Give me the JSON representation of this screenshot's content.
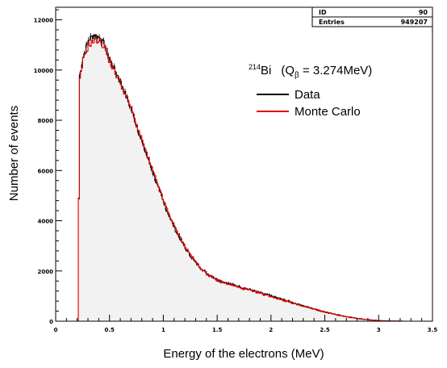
{
  "chart_data": {
    "type": "line",
    "xlabel": "Energy of the electrons (MeV)",
    "ylabel": "Number of events",
    "xlim": [
      0,
      3.5
    ],
    "ylim": [
      0,
      12500
    ],
    "x_ticks": [
      "0",
      "0.5",
      "1",
      "1.5",
      "2",
      "2.5",
      "3",
      "3.5"
    ],
    "y_ticks": [
      "0",
      "2000",
      "4000",
      "6000",
      "8000",
      "10000",
      "12000"
    ],
    "grid": false,
    "stats_box": {
      "id_label": "ID",
      "id_value": "90",
      "entries_label": "Entries",
      "entries_value": "949207"
    },
    "legend": {
      "title_sup": "214",
      "title_main": "Bi",
      "title_q": "(Q",
      "title_sub": "β",
      "title_rest": " = 3.274MeV)",
      "placement": "top-right",
      "entries": [
        {
          "label": "Data",
          "color": "#000000"
        },
        {
          "label": "Monte Carlo",
          "color": "#e00000"
        }
      ]
    },
    "x": [
      0.2,
      0.22,
      0.25,
      0.3,
      0.35,
      0.4,
      0.45,
      0.5,
      0.6,
      0.7,
      0.8,
      0.9,
      1.0,
      1.1,
      1.2,
      1.3,
      1.4,
      1.5,
      1.6,
      1.7,
      1.8,
      1.9,
      2.0,
      2.1,
      2.2,
      2.3,
      2.4,
      2.5,
      2.6,
      2.7,
      2.8,
      2.9,
      3.0,
      3.1,
      3.2,
      3.274
    ],
    "series": [
      {
        "name": "Data",
        "color": "#000000",
        "values": [
          0,
          9800,
          10500,
          11200,
          11400,
          11300,
          11000,
          10400,
          9500,
          8400,
          7100,
          5900,
          4700,
          3700,
          2900,
          2300,
          1900,
          1650,
          1500,
          1370,
          1250,
          1120,
          1000,
          870,
          740,
          600,
          480,
          370,
          270,
          180,
          110,
          60,
          25,
          10,
          3,
          0
        ]
      },
      {
        "name": "Monte Carlo",
        "color": "#e00000",
        "values": [
          0,
          9600,
          10400,
          11000,
          11150,
          11200,
          10900,
          10300,
          9450,
          8450,
          7150,
          5950,
          4750,
          3750,
          2950,
          2320,
          1880,
          1620,
          1480,
          1350,
          1230,
          1100,
          980,
          850,
          720,
          590,
          470,
          360,
          260,
          170,
          105,
          55,
          22,
          8,
          2,
          0
        ]
      }
    ],
    "colors": {
      "fill": "#f2f2f2",
      "axis": "#000000"
    }
  }
}
